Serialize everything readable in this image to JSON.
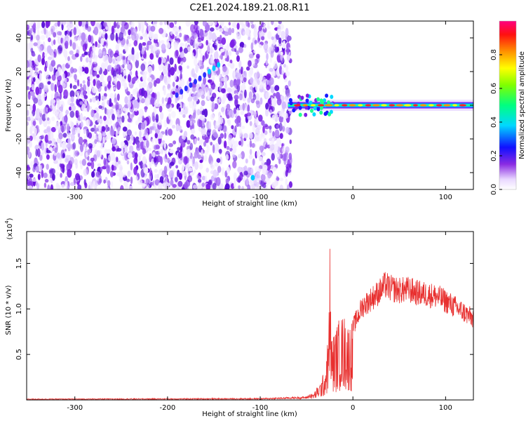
{
  "title": "C2E1.2024.189.21.08.R11",
  "chart_data": [
    {
      "type": "heatmap",
      "xlabel": "Height of straight line (km)",
      "ylabel": "Frequency (Hz)",
      "xlim": [
        -352,
        130
      ],
      "ylim": [
        -50,
        50
      ],
      "xticks": [
        -300,
        -200,
        -100,
        0,
        100
      ],
      "yticks": [
        -40,
        -20,
        0,
        20,
        40
      ],
      "xtick_labels": [
        "-300",
        "-200",
        "-100",
        "0",
        "100"
      ],
      "ytick_labels": [
        "-40",
        "-20",
        "0",
        "20",
        "40"
      ],
      "colorbar": {
        "label": "Normalized spectral amplitude",
        "range": [
          0.0,
          1.0
        ],
        "ticks": [
          0.0,
          0.2,
          0.4,
          0.6,
          0.8
        ],
        "tick_labels": [
          "0.0",
          "0.2",
          "0.4",
          "0.6",
          "0.8"
        ]
      },
      "noise_region_x": [
        -352,
        -67
      ],
      "signal_band": {
        "x_start": -70,
        "x_end": 130,
        "frequency_hz": 0
      },
      "grid": false
    },
    {
      "type": "line",
      "xlabel": "Height of straight line (km)",
      "ylabel": "SNR (10 * v/v)",
      "y_multiplier": "(x10",
      "y_multiplier_exp": "4",
      "y_multiplier_close": ")",
      "xlim": [
        -352,
        130
      ],
      "ylim": [
        0,
        1.85
      ],
      "xticks": [
        -300,
        -200,
        -100,
        0,
        100
      ],
      "yticks": [
        0.5,
        1.0,
        1.5
      ],
      "xtick_labels": [
        "-300",
        "-200",
        "-100",
        "0",
        "100"
      ],
      "ytick_labels": [
        "0.5",
        "1.0",
        "1.5"
      ],
      "line_color": "#e8302f",
      "envelope": {
        "x": [
          -352,
          -100,
          -50,
          -42,
          -40,
          -35,
          -30,
          -26,
          -25,
          -23,
          -20,
          -15,
          -10,
          -5,
          0,
          10,
          20,
          30,
          35,
          40,
          50,
          60,
          70,
          80,
          90,
          100,
          110,
          120,
          130
        ],
        "y": [
          0.01,
          0.015,
          0.03,
          0.08,
          0.12,
          0.2,
          0.35,
          0.8,
          1.85,
          0.7,
          0.75,
          0.9,
          0.95,
          0.85,
          0.9,
          1.15,
          1.25,
          1.35,
          1.42,
          1.38,
          1.35,
          1.36,
          1.32,
          1.3,
          1.28,
          1.22,
          1.15,
          1.08,
          1.0
        ]
      },
      "grid": false
    }
  ]
}
